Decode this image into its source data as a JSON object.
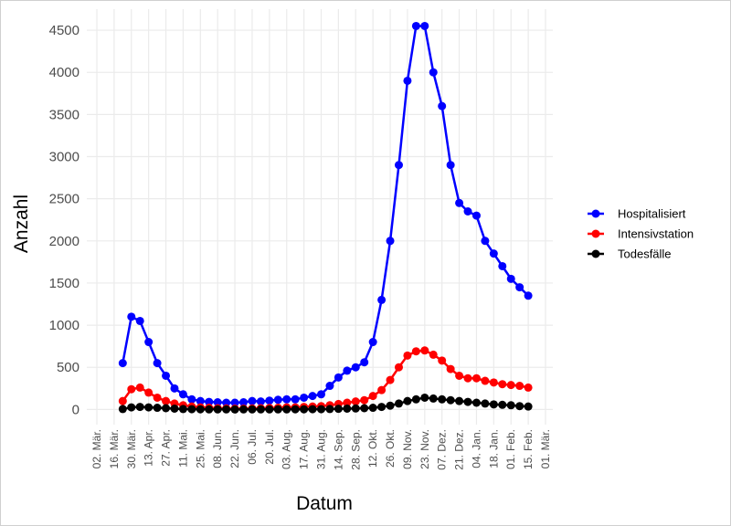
{
  "chart_data": {
    "type": "line",
    "x_label": "Datum",
    "y_label": "Anzahl",
    "x": [
      "23. Mär.",
      "30. Mär.",
      "06. Apr.",
      "13. Apr.",
      "20. Apr.",
      "27. Apr.",
      "04. Mai.",
      "11. Mai.",
      "18. Mai.",
      "25. Mai.",
      "01. Jun.",
      "08. Jun.",
      "15. Jun.",
      "22. Jun.",
      "29. Jun.",
      "06. Jul.",
      "13. Jul.",
      "20. Jul.",
      "27. Jul.",
      "03. Aug.",
      "10. Aug.",
      "17. Aug.",
      "24. Aug.",
      "31. Aug.",
      "07. Sep.",
      "14. Sep.",
      "21. Sep.",
      "28. Sep.",
      "05. Okt.",
      "12. Okt.",
      "19. Okt.",
      "26. Okt.",
      "02. Nov.",
      "09. Nov.",
      "16. Nov.",
      "23. Nov.",
      "30. Nov.",
      "07. Dez.",
      "14. Dez.",
      "21. Dez.",
      "28. Dez.",
      "04. Jan.",
      "11. Jan.",
      "18. Jan.",
      "25. Jan.",
      "01. Feb.",
      "08. Feb.",
      "15. Feb."
    ],
    "series": [
      {
        "name": "Hospitalisiert",
        "color": "#0000ff",
        "values": [
          550,
          1100,
          1050,
          800,
          550,
          400,
          250,
          180,
          120,
          100,
          90,
          85,
          80,
          80,
          85,
          100,
          95,
          105,
          115,
          120,
          120,
          140,
          160,
          180,
          280,
          380,
          460,
          500,
          560,
          800,
          1300,
          2000,
          2900,
          3900,
          4550,
          4550,
          4000,
          3600,
          2900,
          2450,
          2350,
          2300,
          2000,
          1850,
          1700,
          1550,
          1450,
          1350
        ]
      },
      {
        "name": "Intensivstation",
        "color": "#ff0000",
        "values": [
          100,
          240,
          260,
          200,
          140,
          100,
          70,
          50,
          35,
          25,
          20,
          15,
          12,
          10,
          10,
          12,
          15,
          18,
          20,
          25,
          25,
          30,
          35,
          40,
          50,
          65,
          80,
          95,
          110,
          160,
          230,
          350,
          500,
          640,
          690,
          700,
          650,
          580,
          480,
          400,
          370,
          370,
          340,
          320,
          300,
          290,
          280,
          260
        ]
      },
      {
        "name": "Todesfälle",
        "color": "#000000",
        "values": [
          5,
          25,
          30,
          25,
          20,
          15,
          10,
          5,
          3,
          2,
          1,
          1,
          1,
          0,
          1,
          1,
          1,
          1,
          1,
          1,
          2,
          2,
          3,
          3,
          5,
          8,
          10,
          12,
          15,
          20,
          30,
          45,
          70,
          100,
          120,
          140,
          130,
          120,
          110,
          100,
          90,
          80,
          70,
          60,
          55,
          50,
          40,
          35
        ]
      }
    ],
    "ylim": [
      -180,
      4750
    ],
    "yticks": [
      0,
      500,
      1000,
      1500,
      2000,
      2500,
      3000,
      3500,
      4000,
      4500
    ],
    "xticks": [
      "02. Mär.",
      "16. Mär.",
      "30. Mär.",
      "13. Apr.",
      "27. Apr.",
      "11. Mai.",
      "25. Mai.",
      "08. Jun.",
      "22. Jun.",
      "06. Jul.",
      "20. Jul.",
      "03. Aug.",
      "17. Aug.",
      "31. Aug.",
      "14. Sep.",
      "28. Sep.",
      "12. Okt.",
      "26. Okt.",
      "09. Nov.",
      "23. Nov.",
      "07. Dez.",
      "21. Dez.",
      "04. Jan.",
      "18. Jan.",
      "01. Feb.",
      "15. Feb.",
      "01. Mär."
    ],
    "grid": true,
    "legend": "right"
  }
}
